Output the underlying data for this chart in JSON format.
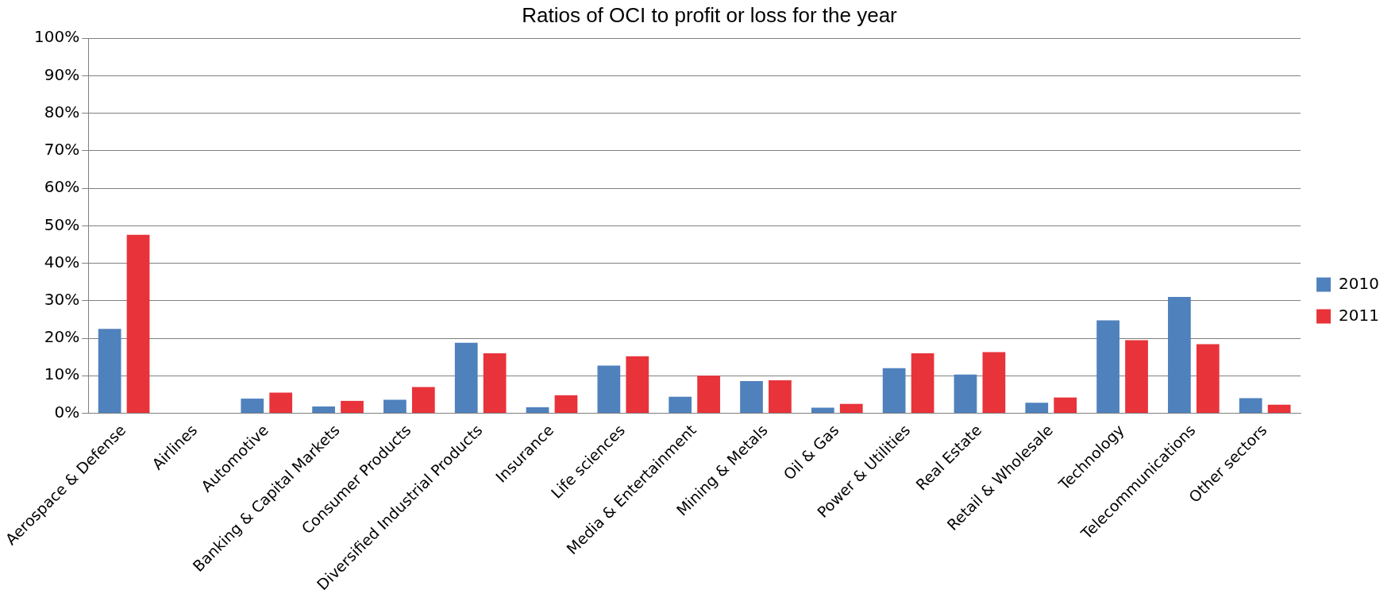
{
  "chart_data": {
    "type": "bar",
    "title": "Ratios of OCI to profit or loss for the year",
    "categories": [
      "Aerospace & Defense",
      "Airlines",
      "Automotive",
      "Banking & Capital Markets",
      "Consumer Products",
      "Diversified Industrial Products",
      "Insurance",
      "Life sciences",
      "Media & Entertainment",
      "Mining & Metals",
      "Oil & Gas",
      "Power & Utilities",
      "Real Estate",
      "Retail & Wholesale",
      "Technology",
      "Telecommunications",
      "Other sectors"
    ],
    "series": [
      {
        "name": "2010",
        "color": "#4f81bd",
        "values": [
          22.5,
          0,
          3.9,
          1.8,
          3.6,
          18.8,
          1.6,
          12.7,
          4.4,
          8.6,
          1.5,
          12,
          10.3,
          2.8,
          24.8,
          31,
          4
        ]
      },
      {
        "name": "2011",
        "color": "#e8333a",
        "values": [
          47.6,
          0,
          5.5,
          3.3,
          7,
          16,
          4.8,
          15.2,
          10,
          8.8,
          2.5,
          16,
          16.3,
          4.2,
          19.5,
          18.4,
          2.3
        ]
      }
    ],
    "ylim": [
      0,
      100
    ],
    "yticks": [
      {
        "value": 0,
        "label": "0%"
      },
      {
        "value": 10,
        "label": "10%"
      },
      {
        "value": 20,
        "label": "20%"
      },
      {
        "value": 30,
        "label": "30%"
      },
      {
        "value": 40,
        "label": "40%"
      },
      {
        "value": 50,
        "label": "50%"
      },
      {
        "value": 60,
        "label": "60%"
      },
      {
        "value": 70,
        "label": "70%"
      },
      {
        "value": 80,
        "label": "80%"
      },
      {
        "value": 90,
        "label": "90%"
      },
      {
        "value": 100,
        "label": "100%"
      }
    ],
    "grid": "y",
    "legend": "right"
  }
}
